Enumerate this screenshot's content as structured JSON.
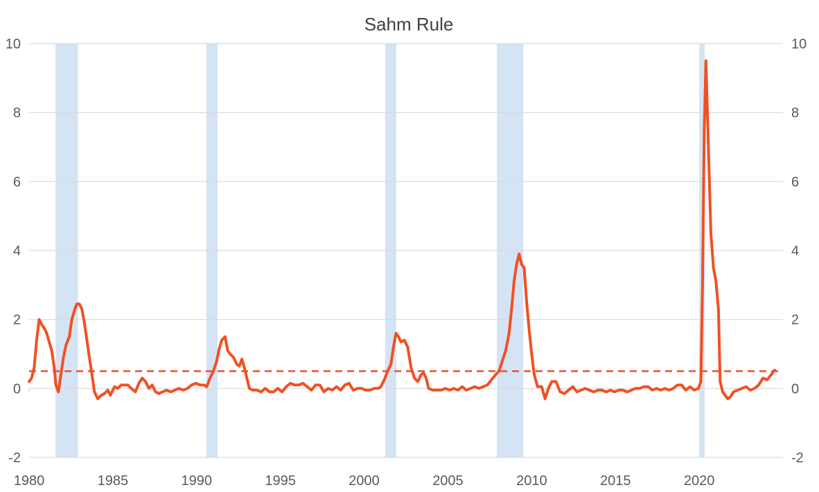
{
  "chart_data": {
    "type": "line",
    "title": "Sahm Rule",
    "xlabel": "",
    "ylabel": "",
    "xlim": [
      1980,
      2025
    ],
    "ylim": [
      -2,
      10
    ],
    "grid": true,
    "legend": "none",
    "x_ticks": [
      "1980",
      "1985",
      "1990",
      "1995",
      "2000",
      "2005",
      "2010",
      "2015",
      "2020"
    ],
    "y_ticks": [
      "-2",
      "0",
      "2",
      "4",
      "6",
      "8",
      "10"
    ],
    "threshold": 0.5,
    "recessions": [
      [
        1981.58,
        1982.92
      ],
      [
        1990.58,
        1991.25
      ],
      [
        2001.25,
        2001.92
      ],
      [
        2007.92,
        2009.5
      ],
      [
        2020.0,
        2020.33
      ]
    ],
    "series": [
      {
        "points": [
          [
            1980.0,
            0.2
          ],
          [
            1980.15,
            0.3
          ],
          [
            1980.3,
            0.6
          ],
          [
            1980.45,
            1.4
          ],
          [
            1980.6,
            2.0
          ],
          [
            1980.75,
            1.85
          ],
          [
            1980.9,
            1.75
          ],
          [
            1981.05,
            1.6
          ],
          [
            1981.2,
            1.35
          ],
          [
            1981.35,
            1.1
          ],
          [
            1981.5,
            0.6
          ],
          [
            1981.6,
            0.1
          ],
          [
            1981.75,
            -0.1
          ],
          [
            1981.9,
            0.4
          ],
          [
            1982.05,
            0.9
          ],
          [
            1982.2,
            1.25
          ],
          [
            1982.4,
            1.5
          ],
          [
            1982.55,
            2.0
          ],
          [
            1982.7,
            2.25
          ],
          [
            1982.85,
            2.45
          ],
          [
            1983.0,
            2.45
          ],
          [
            1983.15,
            2.3
          ],
          [
            1983.3,
            1.9
          ],
          [
            1983.45,
            1.4
          ],
          [
            1983.6,
            0.9
          ],
          [
            1983.75,
            0.4
          ],
          [
            1983.9,
            -0.1
          ],
          [
            1984.1,
            -0.3
          ],
          [
            1984.3,
            -0.2
          ],
          [
            1984.5,
            -0.15
          ],
          [
            1984.7,
            -0.05
          ],
          [
            1984.85,
            -0.2
          ],
          [
            1985.1,
            0.05
          ],
          [
            1985.3,
            0.0
          ],
          [
            1985.5,
            0.1
          ],
          [
            1985.7,
            0.1
          ],
          [
            1985.9,
            0.1
          ],
          [
            1986.1,
            0.0
          ],
          [
            1986.35,
            -0.1
          ],
          [
            1986.55,
            0.15
          ],
          [
            1986.75,
            0.3
          ],
          [
            1986.95,
            0.2
          ],
          [
            1987.15,
            0.0
          ],
          [
            1987.35,
            0.1
          ],
          [
            1987.55,
            -0.1
          ],
          [
            1987.75,
            -0.15
          ],
          [
            1987.95,
            -0.1
          ],
          [
            1988.2,
            -0.05
          ],
          [
            1988.45,
            -0.1
          ],
          [
            1988.7,
            -0.05
          ],
          [
            1988.95,
            0.0
          ],
          [
            1989.2,
            -0.05
          ],
          [
            1989.45,
            0.0
          ],
          [
            1989.7,
            0.1
          ],
          [
            1989.95,
            0.15
          ],
          [
            1990.2,
            0.1
          ],
          [
            1990.45,
            0.1
          ],
          [
            1990.6,
            0.05
          ],
          [
            1990.8,
            0.3
          ],
          [
            1991.0,
            0.5
          ],
          [
            1991.2,
            0.8
          ],
          [
            1991.35,
            1.15
          ],
          [
            1991.5,
            1.4
          ],
          [
            1991.7,
            1.5
          ],
          [
            1991.85,
            1.1
          ],
          [
            1992.0,
            1.0
          ],
          [
            1992.2,
            0.9
          ],
          [
            1992.4,
            0.7
          ],
          [
            1992.55,
            0.65
          ],
          [
            1992.7,
            0.85
          ],
          [
            1992.85,
            0.6
          ],
          [
            1993.0,
            0.3
          ],
          [
            1993.15,
            0.0
          ],
          [
            1993.35,
            -0.05
          ],
          [
            1993.6,
            -0.05
          ],
          [
            1993.85,
            -0.1
          ],
          [
            1994.1,
            0.0
          ],
          [
            1994.35,
            -0.1
          ],
          [
            1994.6,
            -0.1
          ],
          [
            1994.85,
            0.0
          ],
          [
            1995.1,
            -0.1
          ],
          [
            1995.35,
            0.05
          ],
          [
            1995.6,
            0.15
          ],
          [
            1995.85,
            0.1
          ],
          [
            1996.1,
            0.1
          ],
          [
            1996.35,
            0.15
          ],
          [
            1996.6,
            0.05
          ],
          [
            1996.85,
            -0.05
          ],
          [
            1997.1,
            0.1
          ],
          [
            1997.35,
            0.1
          ],
          [
            1997.6,
            -0.1
          ],
          [
            1997.85,
            0.0
          ],
          [
            1998.1,
            -0.05
          ],
          [
            1998.35,
            0.05
          ],
          [
            1998.6,
            -0.05
          ],
          [
            1998.85,
            0.1
          ],
          [
            1999.1,
            0.15
          ],
          [
            1999.35,
            -0.05
          ],
          [
            1999.6,
            0.0
          ],
          [
            1999.85,
            0.0
          ],
          [
            2000.1,
            -0.05
          ],
          [
            2000.35,
            -0.05
          ],
          [
            2000.6,
            0.0
          ],
          [
            2000.85,
            0.0
          ],
          [
            2001.0,
            0.05
          ],
          [
            2001.2,
            0.25
          ],
          [
            2001.4,
            0.5
          ],
          [
            2001.6,
            0.7
          ],
          [
            2001.75,
            1.2
          ],
          [
            2001.9,
            1.6
          ],
          [
            2002.05,
            1.5
          ],
          [
            2002.2,
            1.35
          ],
          [
            2002.4,
            1.4
          ],
          [
            2002.6,
            1.2
          ],
          [
            2002.8,
            0.6
          ],
          [
            2003.0,
            0.3
          ],
          [
            2003.2,
            0.2
          ],
          [
            2003.4,
            0.4
          ],
          [
            2003.55,
            0.45
          ],
          [
            2003.7,
            0.3
          ],
          [
            2003.85,
            0.0
          ],
          [
            2004.1,
            -0.05
          ],
          [
            2004.35,
            -0.05
          ],
          [
            2004.6,
            -0.05
          ],
          [
            2004.85,
            0.0
          ],
          [
            2005.1,
            -0.05
          ],
          [
            2005.35,
            0.0
          ],
          [
            2005.6,
            -0.05
          ],
          [
            2005.85,
            0.05
          ],
          [
            2006.1,
            -0.05
          ],
          [
            2006.35,
            0.0
          ],
          [
            2006.6,
            0.05
          ],
          [
            2006.85,
            0.0
          ],
          [
            2007.1,
            0.05
          ],
          [
            2007.35,
            0.1
          ],
          [
            2007.6,
            0.25
          ],
          [
            2007.85,
            0.4
          ],
          [
            2008.05,
            0.5
          ],
          [
            2008.25,
            0.8
          ],
          [
            2008.45,
            1.1
          ],
          [
            2008.65,
            1.6
          ],
          [
            2008.8,
            2.3
          ],
          [
            2008.95,
            3.1
          ],
          [
            2009.1,
            3.6
          ],
          [
            2009.25,
            3.9
          ],
          [
            2009.4,
            3.6
          ],
          [
            2009.55,
            3.5
          ],
          [
            2009.7,
            2.5
          ],
          [
            2009.85,
            1.7
          ],
          [
            2010.0,
            1.0
          ],
          [
            2010.15,
            0.4
          ],
          [
            2010.35,
            0.05
          ],
          [
            2010.6,
            0.05
          ],
          [
            2010.8,
            -0.3
          ],
          [
            2011.0,
            0.0
          ],
          [
            2011.2,
            0.2
          ],
          [
            2011.45,
            0.2
          ],
          [
            2011.7,
            -0.1
          ],
          [
            2011.95,
            -0.15
          ],
          [
            2012.2,
            -0.05
          ],
          [
            2012.45,
            0.05
          ],
          [
            2012.7,
            -0.1
          ],
          [
            2012.95,
            -0.05
          ],
          [
            2013.2,
            0.0
          ],
          [
            2013.45,
            -0.05
          ],
          [
            2013.7,
            -0.1
          ],
          [
            2013.95,
            -0.05
          ],
          [
            2014.2,
            -0.05
          ],
          [
            2014.45,
            -0.1
          ],
          [
            2014.7,
            -0.05
          ],
          [
            2014.95,
            -0.1
          ],
          [
            2015.2,
            -0.05
          ],
          [
            2015.45,
            -0.05
          ],
          [
            2015.7,
            -0.1
          ],
          [
            2015.95,
            -0.05
          ],
          [
            2016.2,
            0.0
          ],
          [
            2016.45,
            0.0
          ],
          [
            2016.7,
            0.05
          ],
          [
            2016.95,
            0.05
          ],
          [
            2017.2,
            -0.05
          ],
          [
            2017.45,
            0.0
          ],
          [
            2017.7,
            -0.05
          ],
          [
            2017.95,
            0.0
          ],
          [
            2018.2,
            -0.05
          ],
          [
            2018.45,
            0.0
          ],
          [
            2018.7,
            0.1
          ],
          [
            2018.95,
            0.1
          ],
          [
            2019.2,
            -0.05
          ],
          [
            2019.45,
            0.05
          ],
          [
            2019.7,
            -0.05
          ],
          [
            2019.95,
            0.0
          ],
          [
            2020.1,
            0.2
          ],
          [
            2020.2,
            3.0
          ],
          [
            2020.3,
            7.5
          ],
          [
            2020.4,
            9.5
          ],
          [
            2020.55,
            7.0
          ],
          [
            2020.7,
            4.5
          ],
          [
            2020.85,
            3.5
          ],
          [
            2021.0,
            3.1
          ],
          [
            2021.15,
            2.3
          ],
          [
            2021.25,
            0.2
          ],
          [
            2021.4,
            -0.1
          ],
          [
            2021.55,
            -0.2
          ],
          [
            2021.7,
            -0.3
          ],
          [
            2021.85,
            -0.25
          ],
          [
            2022.05,
            -0.1
          ],
          [
            2022.3,
            -0.05
          ],
          [
            2022.55,
            0.0
          ],
          [
            2022.8,
            0.05
          ],
          [
            2023.05,
            -0.05
          ],
          [
            2023.3,
            0.0
          ],
          [
            2023.55,
            0.1
          ],
          [
            2023.8,
            0.3
          ],
          [
            2024.05,
            0.25
          ],
          [
            2024.3,
            0.4
          ],
          [
            2024.5,
            0.53
          ]
        ]
      }
    ],
    "colors": {
      "line": "#f05023",
      "threshold": "#e8522c",
      "recession": "#d4e4f4",
      "grid": "#d9d9d9",
      "text": "#595959"
    }
  }
}
